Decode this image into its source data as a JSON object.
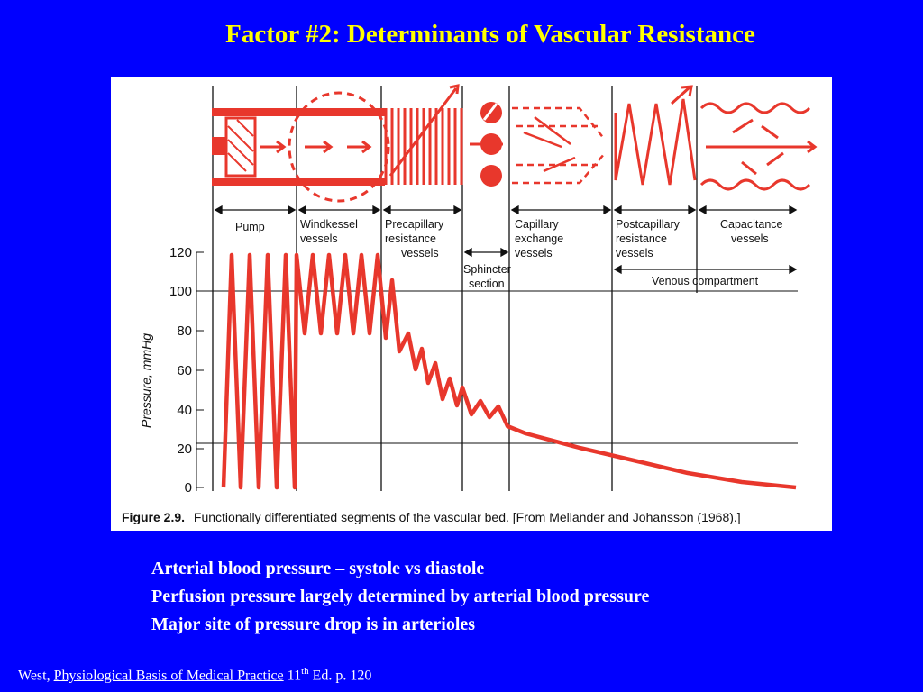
{
  "slide": {
    "title": "Factor #2: Determinants of Vascular Resistance",
    "bullets": [
      "Arterial blood pressure – systole vs diastole",
      "Perfusion pressure largely determined by arterial blood pressure",
      "Major site of pressure drop is in arterioles"
    ],
    "citation": {
      "author": "West,",
      "book": "Physiological Basis of Medical Practice",
      "edition_num": "11",
      "edition_sup": "th",
      "rest": "Ed. p. 120"
    }
  },
  "figure": {
    "segments": {
      "pump": "Pump",
      "windkessel": [
        "Windkessel",
        "vessels"
      ],
      "precapillary": [
        "Precapillary",
        "resistance",
        "vessels"
      ],
      "sphincter": [
        "Sphincter",
        "section"
      ],
      "capillary": [
        "Capillary",
        "exchange",
        "vessels"
      ],
      "postcapillary": [
        "Postcapillary",
        "resistance",
        "vessels"
      ],
      "capacitance": [
        "Capacitance",
        "vessels"
      ]
    },
    "venous_label": "Venous compartment",
    "y_axis_label": "Pressure, mmHg",
    "y_ticks": [
      "120",
      "100",
      "80",
      "60",
      "40",
      "20",
      "0"
    ],
    "caption_bold": "Figure 2.9.",
    "caption_text": "Functionally differentiated segments of the vascular bed. [From Mellander and Johansson (1968).]",
    "line_color": "#e8372c"
  }
}
